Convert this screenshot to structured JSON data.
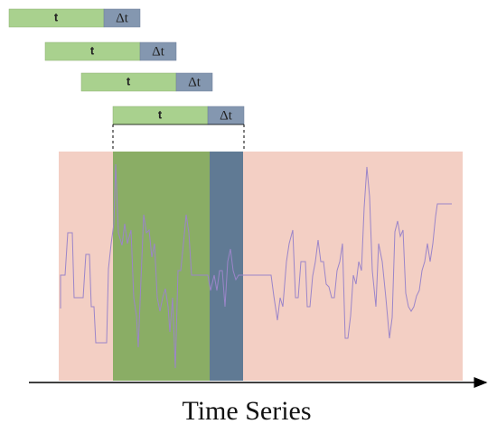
{
  "windows": [
    {
      "window_label": "t",
      "delta_label": "Δt"
    },
    {
      "window_label": "t",
      "delta_label": "Δt"
    },
    {
      "window_label": "t",
      "delta_label": "Δt"
    },
    {
      "window_label": "t",
      "delta_label": "Δt"
    }
  ],
  "axis_label": "Time Series"
}
